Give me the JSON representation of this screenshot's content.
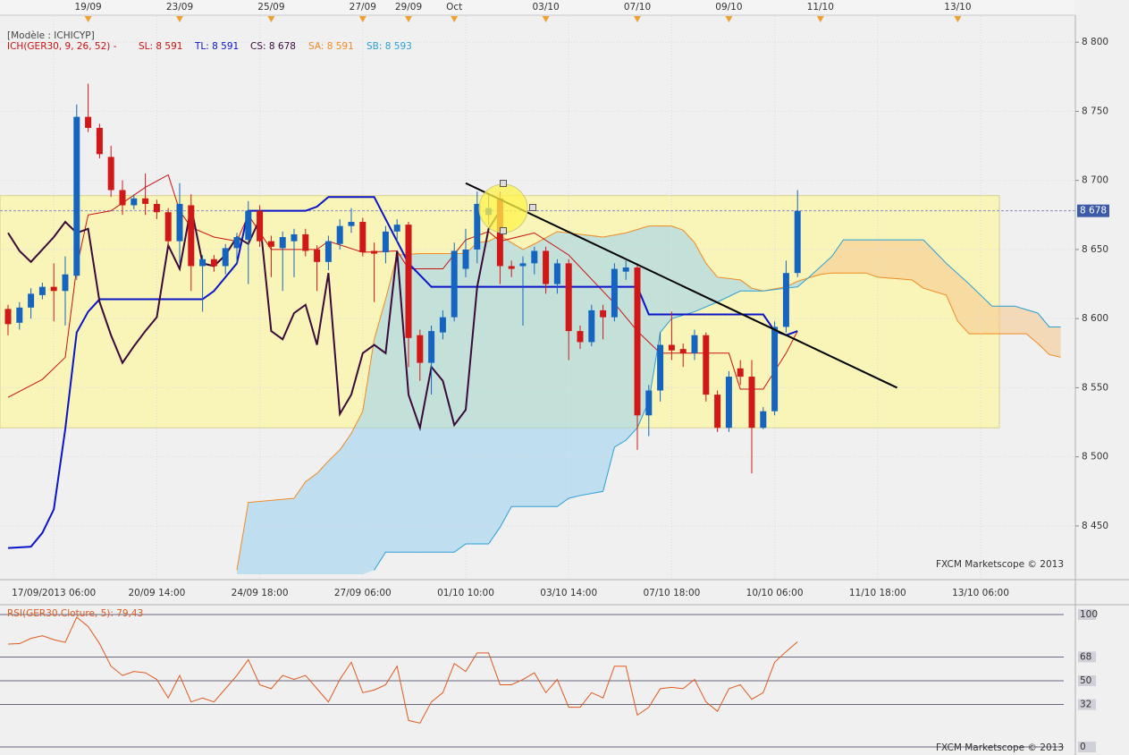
{
  "chart_data": [
    {
      "type": "candlestick",
      "model": "[Modèle : ICHICYP]",
      "indicator": "ICH(GER30, 9, 26, 52) -",
      "watermark": "FXCM Marketscope © 2013",
      "categories": [
        null,
        null,
        null,
        null,
        "17/09/2013 06:00",
        null,
        null,
        null,
        null,
        null,
        null,
        null,
        null,
        "20/09 14:00",
        null,
        null,
        null,
        null,
        null,
        null,
        null,
        null,
        "24/09 18:00",
        null,
        null,
        null,
        null,
        null,
        null,
        null,
        null,
        "27/09 06:00",
        null,
        null,
        null,
        null,
        null,
        null,
        null,
        null,
        "01/10 10:00",
        null,
        null,
        null,
        null,
        null,
        null,
        null,
        null,
        "03/10 14:00",
        null,
        null,
        null,
        null,
        null,
        null,
        null,
        null,
        "07/10 18:00",
        null,
        null,
        null,
        null,
        null,
        null,
        null,
        null,
        "10/10 06:00",
        null,
        null,
        null,
        null,
        null,
        null,
        null,
        null,
        "11/10 18:00",
        null,
        null,
        null,
        null,
        null,
        null,
        null,
        null,
        "13/10 06:00",
        null,
        null,
        null,
        null,
        null,
        null,
        null
      ],
      "top_categories": [
        null,
        null,
        null,
        null,
        null,
        null,
        null,
        "19/09",
        null,
        null,
        null,
        null,
        null,
        null,
        null,
        "23/09",
        null,
        null,
        null,
        null,
        null,
        null,
        null,
        "25/09",
        null,
        null,
        null,
        null,
        null,
        null,
        null,
        "27/09",
        null,
        null,
        null,
        "29/09",
        null,
        null,
        null,
        "Oct",
        null,
        null,
        null,
        null,
        null,
        null,
        null,
        "03/10",
        null,
        null,
        null,
        null,
        null,
        null,
        null,
        "07/10",
        null,
        null,
        null,
        null,
        null,
        null,
        null,
        "09/10",
        null,
        null,
        null,
        null,
        null,
        null,
        null,
        "11/10",
        null,
        null,
        null,
        null,
        null,
        null,
        null,
        null,
        null,
        null,
        null,
        "13/10",
        null,
        null,
        null,
        null,
        null,
        null,
        null,
        null,
        null
      ],
      "open": [
        8607,
        8597,
        8608,
        8617,
        8623,
        8620,
        8631,
        8746,
        8738,
        8717,
        8693,
        8682,
        8687,
        8683,
        8677,
        8656,
        8682,
        8638,
        8643,
        8638,
        8651,
        8657,
        8678,
        8656,
        8651,
        8656,
        8661,
        8650,
        8641,
        8654,
        8667,
        8670,
        8649,
        8648,
        8663,
        8668,
        8588,
        8568,
        8590,
        8601,
        8636,
        8650,
        8675,
        8687,
        8638,
        8638,
        8640,
        8649,
        8625,
        8640,
        8591,
        8583,
        8606,
        8601,
        8634,
        8637,
        8530,
        8548,
        8581,
        8578,
        8575,
        8588,
        8545,
        8521,
        8564,
        8558,
        8521,
        8533,
        8594,
        8633,
        null,
        null,
        null,
        null,
        null,
        null,
        null,
        null,
        null,
        null,
        null,
        null,
        null,
        null,
        null,
        null,
        null,
        null,
        null,
        null,
        null,
        null,
        null
      ],
      "high": [
        8610,
        8612,
        8622,
        8626,
        8640,
        8645,
        8755,
        8770,
        8741,
        8725,
        8700,
        8690,
        8705,
        8686,
        8680,
        8698,
        8690,
        8646,
        8646,
        8654,
        8662,
        8685,
        8682,
        8660,
        8663,
        8665,
        8665,
        8653,
        8660,
        8672,
        8680,
        8673,
        8655,
        8667,
        8672,
        8670,
        8592,
        8595,
        8606,
        8655,
        8665,
        8692,
        8690,
        8692,
        8642,
        8645,
        8652,
        8652,
        8643,
        8643,
        8595,
        8610,
        8610,
        8640,
        8642,
        8640,
        8552,
        8590,
        8605,
        8582,
        8592,
        8590,
        8548,
        8562,
        8570,
        8570,
        8536,
        8598,
        8642,
        8693,
        null,
        null,
        null,
        null,
        null,
        null,
        null,
        null,
        null,
        null,
        null,
        null,
        null,
        null,
        null,
        null,
        null,
        null,
        null,
        null,
        null,
        null,
        null
      ],
      "low": [
        8588,
        8592,
        8600,
        8614,
        8598,
        8595,
        8628,
        8735,
        8716,
        8688,
        8675,
        8679,
        8675,
        8672,
        8652,
        8640,
        8620,
        8605,
        8634,
        8632,
        8640,
        8625,
        8652,
        8630,
        8620,
        8630,
        8645,
        8620,
        8635,
        8650,
        8662,
        8645,
        8612,
        8640,
        8655,
        8565,
        8555,
        8545,
        8585,
        8598,
        8630,
        8640,
        8668,
        8625,
        8630,
        8595,
        8632,
        8618,
        8618,
        8570,
        8578,
        8580,
        8585,
        8598,
        8628,
        8505,
        8515,
        8540,
        8570,
        8565,
        8570,
        8540,
        8518,
        8518,
        8552,
        8488,
        8520,
        8530,
        8590,
        8630,
        null,
        null,
        null,
        null,
        null,
        null,
        null,
        null,
        null,
        null,
        null,
        null,
        null,
        null,
        null,
        null,
        null,
        null,
        null,
        null,
        null,
        null,
        null
      ],
      "close": [
        8596,
        8608,
        8618,
        8623,
        8620,
        8632,
        8746,
        8738,
        8719,
        8693,
        8682,
        8687,
        8683,
        8677,
        8656,
        8683,
        8638,
        8643,
        8638,
        8651,
        8659,
        8678,
        8656,
        8652,
        8659,
        8661,
        8649,
        8641,
        8656,
        8667,
        8670,
        8648,
        8647,
        8663,
        8668,
        8586,
        8568,
        8591,
        8601,
        8649,
        8650,
        8683,
        8680,
        8638,
        8636,
        8640,
        8649,
        8625,
        8640,
        8591,
        8583,
        8606,
        8601,
        8636,
        8637,
        8530,
        8548,
        8581,
        8577,
        8575,
        8588,
        8545,
        8521,
        8558,
        8558,
        8521,
        8533,
        8594,
        8633,
        8678,
        null,
        null,
        null,
        null,
        null,
        null,
        null,
        null,
        null,
        null,
        null,
        null,
        null,
        null,
        null,
        null,
        null,
        null,
        null,
        null,
        null,
        null,
        null
      ],
      "up_color": "#1565c0",
      "down_color": "#d01818",
      "series": [
        {
          "name": "SL: 8 591",
          "color": "#cc1111",
          "x": [
            0,
            3,
            5,
            6,
            7,
            9,
            12,
            14,
            15,
            16,
            18,
            20,
            21,
            23,
            27,
            28,
            31,
            34,
            35,
            38,
            40,
            42,
            43,
            46,
            49,
            53,
            55,
            57,
            63,
            64,
            66,
            68,
            69
          ],
          "values": [
            8543,
            8556,
            8572,
            8637,
            8675,
            8678,
            8695,
            8704,
            8678,
            8666,
            8659,
            8656,
            8675,
            8650,
            8650,
            8656,
            8648,
            8649,
            8636,
            8636,
            8657,
            8663,
            8656,
            8662,
            8646,
            8611,
            8591,
            8575,
            8575,
            8549,
            8549,
            8575,
            8591
          ]
        },
        {
          "name": "TL: 8 591",
          "color": "#0a14c8",
          "x": [
            0,
            2,
            3,
            4,
            5,
            6,
            7,
            8,
            17,
            18,
            20,
            21,
            26,
            27,
            28,
            32,
            35,
            37,
            55,
            56,
            66,
            67,
            68,
            69
          ],
          "values": [
            8434,
            8435,
            8445,
            8462,
            8520,
            8590,
            8605,
            8614,
            8614,
            8620,
            8640,
            8678,
            8678,
            8681,
            8688,
            8688,
            8640,
            8623,
            8623,
            8603,
            8603,
            8591,
            8588,
            8591
          ]
        },
        {
          "name": "CS: 8 678",
          "color": "#3a0a3a",
          "x": [
            0,
            1,
            2,
            3,
            4,
            5,
            6,
            7,
            8,
            9,
            10,
            11,
            12,
            13,
            14,
            15,
            16,
            17,
            18,
            19,
            20,
            21,
            22,
            23,
            24,
            25,
            26,
            27,
            28,
            29,
            30,
            31,
            32,
            33,
            34,
            35,
            36,
            37,
            38,
            39,
            40,
            41,
            42,
            43
          ],
          "values": [
            8662,
            8649,
            8641,
            8650,
            8659,
            8670,
            8662,
            8665,
            8612,
            8588,
            8568,
            8580,
            8591,
            8601,
            8653,
            8636,
            8681,
            8640,
            8638,
            8646,
            8659,
            8654,
            8672,
            8591,
            8585,
            8604,
            8610,
            8581,
            8633,
            8531,
            8545,
            8575,
            8581,
            8575,
            8649,
            8545,
            8521,
            8565,
            8555,
            8523,
            8534,
            8623,
            8665,
            8678
          ]
        },
        {
          "name": "SA: 8 591",
          "color": "#f08a24",
          "x": [
            20,
            21,
            25,
            26,
            27,
            28,
            29,
            30,
            31,
            32,
            33,
            34,
            36,
            40,
            41,
            42,
            43,
            44,
            45,
            46,
            48,
            51,
            52,
            54,
            56,
            58,
            59,
            60,
            61,
            62,
            64,
            65,
            66,
            68,
            69,
            71,
            72,
            75,
            76,
            79,
            80,
            82,
            83,
            84,
            89,
            90,
            91,
            92
          ],
          "values": [
            8418,
            8467,
            8470,
            8482,
            8488,
            8497,
            8505,
            8517,
            8533,
            8585,
            8614,
            8646,
            8647,
            8647,
            8655,
            8656,
            8660,
            8655,
            8650,
            8654,
            8663,
            8660,
            8659,
            8662,
            8667,
            8667,
            8664,
            8655,
            8640,
            8630,
            8628,
            8622,
            8620,
            8623,
            8627,
            8632,
            8633,
            8633,
            8630,
            8628,
            8622,
            8617,
            8598,
            8589,
            8589,
            8582,
            8574,
            8572
          ]
        },
        {
          "name": "SB: 8 593",
          "color": "#2aa0d8",
          "x": [
            32,
            33,
            39,
            40,
            42,
            43,
            44,
            48,
            49,
            50,
            52,
            53,
            54,
            55,
            56,
            57,
            58,
            60,
            62,
            64,
            66,
            68,
            69,
            70,
            72,
            73,
            80,
            82,
            84,
            86,
            88,
            90,
            91,
            92
          ],
          "values": [
            8418,
            8431,
            8431,
            8437,
            8437,
            8449,
            8464,
            8464,
            8470,
            8472,
            8475,
            8507,
            8512,
            8521,
            8540,
            8590,
            8600,
            8605,
            8612,
            8620,
            8620,
            8622,
            8623,
            8630,
            8645,
            8657,
            8657,
            8640,
            8625,
            8609,
            8609,
            8604,
            8594,
            8594
          ]
        }
      ],
      "cloud_up_color": "#9fd2ee",
      "cloud_down_color": "#f7c98f",
      "zone": {
        "top": 8689,
        "bottom": 8521,
        "color": "#f9f5b8"
      },
      "trendline": {
        "x": [
          40,
          77.7
        ],
        "values": [
          8698,
          8550
        ],
        "color": "#000000"
      },
      "last_price": {
        "value": 8678,
        "label": "8 678"
      },
      "ylim": [
        8415,
        8815
      ],
      "yticks": [
        {
          "value": 8450,
          "label": "8 450"
        },
        {
          "value": 8500,
          "label": "8 500"
        },
        {
          "value": 8550,
          "label": "8 550"
        },
        {
          "value": 8600,
          "label": "8 600"
        },
        {
          "value": 8650,
          "label": "8 650"
        },
        {
          "value": 8700,
          "label": "8 700"
        },
        {
          "value": 8750,
          "label": "8 750"
        },
        {
          "value": 8800,
          "label": "8 800"
        }
      ],
      "grid": true
    },
    {
      "type": "line",
      "title": "RSI(GER30.Cloture, 5): 79,43",
      "watermark": "FXCM Marketscope © 2013",
      "values": [
        77.7,
        78,
        82,
        84,
        81,
        79,
        98,
        91,
        78,
        61,
        54,
        57,
        56,
        51,
        37,
        54,
        34,
        37,
        34,
        44,
        54,
        66,
        47,
        44,
        54,
        51,
        54,
        44,
        34,
        51,
        64,
        41,
        43,
        47,
        61,
        20,
        18,
        34,
        41,
        63,
        57,
        71,
        71,
        47,
        47,
        51,
        56,
        41,
        51,
        30,
        30,
        41,
        37,
        61,
        61,
        24,
        30,
        44,
        45,
        44,
        51,
        34,
        27,
        44,
        47,
        36,
        41,
        64,
        72,
        79.43
      ],
      "color": "#e05a1e",
      "ylim": [
        0,
        100
      ],
      "yticks": [
        0,
        32,
        50,
        68,
        100
      ]
    }
  ]
}
